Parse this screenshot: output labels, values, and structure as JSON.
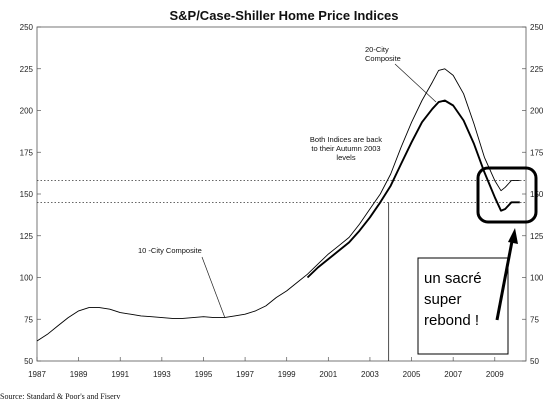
{
  "chart_data": {
    "type": "line",
    "title": "S&P/Case-Shiller Home Price Indices",
    "xlabel": "",
    "ylabel": "",
    "xlim": [
      1987,
      2010.5
    ],
    "ylim": [
      50,
      250
    ],
    "x_ticks": [
      "1987",
      "1989",
      "1991",
      "1993",
      "1995",
      "1997",
      "1999",
      "2001",
      "2003",
      "2005",
      "2007",
      "2009"
    ],
    "y_ticks_left": [
      "50",
      "75",
      "100",
      "125",
      "150",
      "175",
      "200",
      "225",
      "250"
    ],
    "y_ticks_right": [
      "50",
      "75",
      "100",
      "125",
      "150",
      "175",
      "200",
      "225",
      "250"
    ],
    "grid": false,
    "reference_lines": [
      {
        "y": 158,
        "style": "dotted"
      },
      {
        "y": 145,
        "style": "dotted"
      }
    ],
    "vertical_marker": {
      "x": 2003.9
    },
    "series": [
      {
        "name": "10 -City Composite",
        "points": [
          [
            1987.0,
            62
          ],
          [
            1987.5,
            66
          ],
          [
            1988.0,
            71
          ],
          [
            1988.5,
            76
          ],
          [
            1989.0,
            80
          ],
          [
            1989.5,
            82
          ],
          [
            1990.0,
            82
          ],
          [
            1990.5,
            81
          ],
          [
            1991.0,
            79
          ],
          [
            1991.5,
            78
          ],
          [
            1992.0,
            77
          ],
          [
            1992.5,
            76.5
          ],
          [
            1993.0,
            76
          ],
          [
            1993.5,
            75.5
          ],
          [
            1994.0,
            75.5
          ],
          [
            1994.5,
            76
          ],
          [
            1995.0,
            76.5
          ],
          [
            1995.5,
            76
          ],
          [
            1996.0,
            76
          ],
          [
            1996.5,
            77
          ],
          [
            1997.0,
            78
          ],
          [
            1997.5,
            80
          ],
          [
            1998.0,
            83
          ],
          [
            1998.5,
            88
          ],
          [
            1999.0,
            92
          ],
          [
            1999.5,
            97
          ],
          [
            2000.0,
            102
          ],
          [
            2000.5,
            108
          ],
          [
            2001.0,
            114
          ],
          [
            2001.5,
            119
          ],
          [
            2002.0,
            124
          ],
          [
            2002.5,
            132
          ],
          [
            2003.0,
            141
          ],
          [
            2003.5,
            150
          ],
          [
            2004.0,
            162
          ],
          [
            2004.5,
            178
          ],
          [
            2005.0,
            193
          ],
          [
            2005.5,
            206
          ],
          [
            2006.0,
            217
          ],
          [
            2006.3,
            224
          ],
          [
            2006.6,
            225
          ],
          [
            2007.0,
            221
          ],
          [
            2007.5,
            210
          ],
          [
            2008.0,
            192
          ],
          [
            2008.5,
            172
          ],
          [
            2009.0,
            158
          ],
          [
            2009.3,
            152
          ],
          [
            2009.5,
            154
          ],
          [
            2009.8,
            158
          ],
          [
            2010.2,
            158
          ]
        ]
      },
      {
        "name": "20-City Composite",
        "points": [
          [
            2000.0,
            100
          ],
          [
            2000.5,
            106
          ],
          [
            2001.0,
            111
          ],
          [
            2001.5,
            116
          ],
          [
            2002.0,
            121
          ],
          [
            2002.5,
            128
          ],
          [
            2003.0,
            136
          ],
          [
            2003.5,
            145
          ],
          [
            2004.0,
            155
          ],
          [
            2004.5,
            168
          ],
          [
            2005.0,
            181
          ],
          [
            2005.5,
            193
          ],
          [
            2006.0,
            201
          ],
          [
            2006.3,
            205
          ],
          [
            2006.6,
            206
          ],
          [
            2007.0,
            203
          ],
          [
            2007.5,
            194
          ],
          [
            2008.0,
            180
          ],
          [
            2008.5,
            163
          ],
          [
            2009.0,
            148
          ],
          [
            2009.3,
            140
          ],
          [
            2009.5,
            141
          ],
          [
            2009.8,
            145
          ],
          [
            2010.2,
            145
          ]
        ]
      }
    ],
    "annotations": {
      "ten_city": "10 -City Composite",
      "twenty_city_line1": "20-City",
      "twenty_city_line2": "Composite",
      "autumn_line1": "Both Indices are back",
      "autumn_line2": "to their Autumn 2003",
      "autumn_line3": "levels"
    },
    "source": "Source: Standard & Poor's and Fiserv",
    "callout": {
      "line1": "un sacré",
      "line2": "super",
      "line3": "rebond !"
    }
  }
}
